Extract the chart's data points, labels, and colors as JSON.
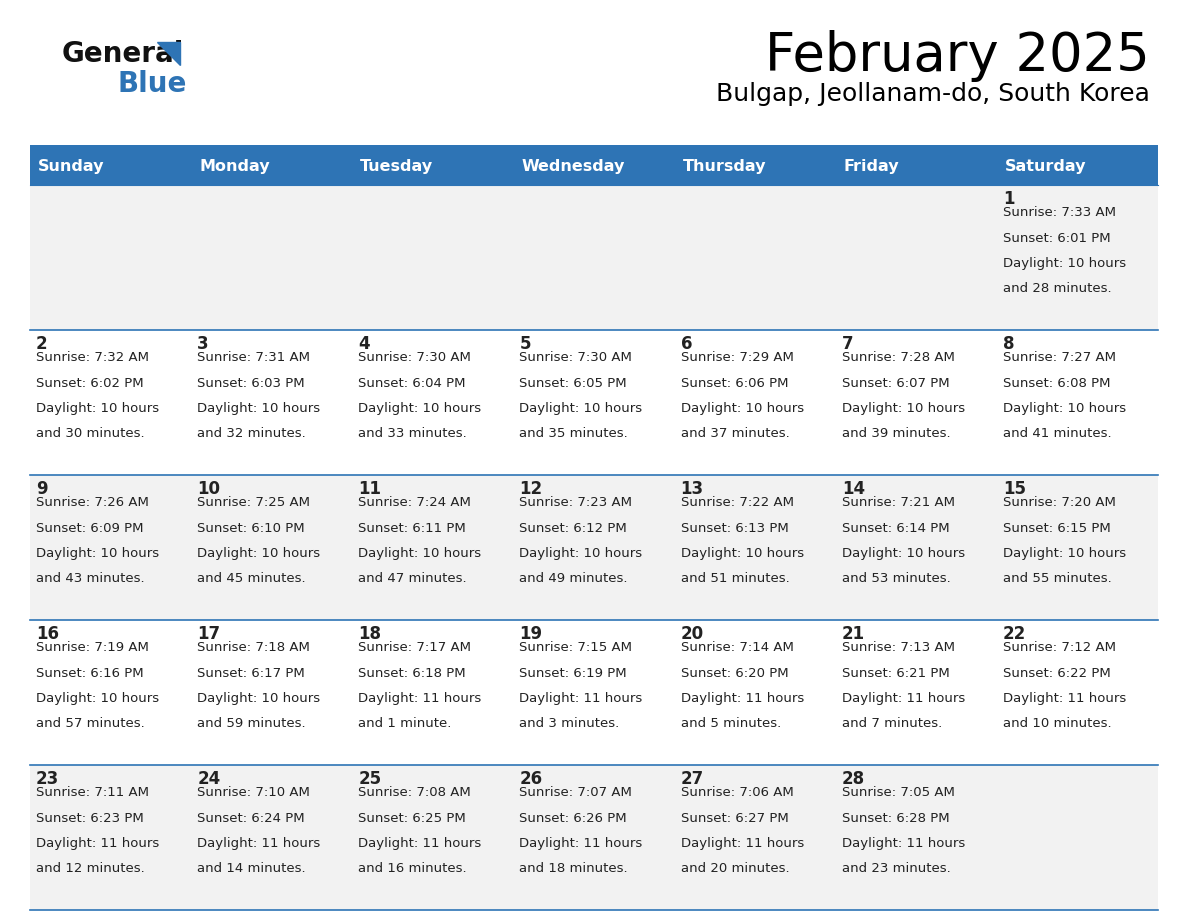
{
  "title": "February 2025",
  "subtitle": "Bulgap, Jeollanam-do, South Korea",
  "days_of_week": [
    "Sunday",
    "Monday",
    "Tuesday",
    "Wednesday",
    "Thursday",
    "Friday",
    "Saturday"
  ],
  "header_bg": "#2E74B5",
  "header_text": "#FFFFFF",
  "cell_bg_odd": "#F2F2F2",
  "cell_bg_even": "#FFFFFF",
  "divider_color": "#2E74B5",
  "text_color": "#222222",
  "day_num_color": "#222222",
  "logo_general_color": "#111111",
  "logo_blue_color": "#2E74B5",
  "calendar_data": [
    {
      "day": 1,
      "col": 6,
      "row": 0,
      "sunrise": "7:33 AM",
      "sunset": "6:01 PM",
      "daylight_hrs": "10 hours",
      "daylight_min": "and 28 minutes."
    },
    {
      "day": 2,
      "col": 0,
      "row": 1,
      "sunrise": "7:32 AM",
      "sunset": "6:02 PM",
      "daylight_hrs": "10 hours",
      "daylight_min": "and 30 minutes."
    },
    {
      "day": 3,
      "col": 1,
      "row": 1,
      "sunrise": "7:31 AM",
      "sunset": "6:03 PM",
      "daylight_hrs": "10 hours",
      "daylight_min": "and 32 minutes."
    },
    {
      "day": 4,
      "col": 2,
      "row": 1,
      "sunrise": "7:30 AM",
      "sunset": "6:04 PM",
      "daylight_hrs": "10 hours",
      "daylight_min": "and 33 minutes."
    },
    {
      "day": 5,
      "col": 3,
      "row": 1,
      "sunrise": "7:30 AM",
      "sunset": "6:05 PM",
      "daylight_hrs": "10 hours",
      "daylight_min": "and 35 minutes."
    },
    {
      "day": 6,
      "col": 4,
      "row": 1,
      "sunrise": "7:29 AM",
      "sunset": "6:06 PM",
      "daylight_hrs": "10 hours",
      "daylight_min": "and 37 minutes."
    },
    {
      "day": 7,
      "col": 5,
      "row": 1,
      "sunrise": "7:28 AM",
      "sunset": "6:07 PM",
      "daylight_hrs": "10 hours",
      "daylight_min": "and 39 minutes."
    },
    {
      "day": 8,
      "col": 6,
      "row": 1,
      "sunrise": "7:27 AM",
      "sunset": "6:08 PM",
      "daylight_hrs": "10 hours",
      "daylight_min": "and 41 minutes."
    },
    {
      "day": 9,
      "col": 0,
      "row": 2,
      "sunrise": "7:26 AM",
      "sunset": "6:09 PM",
      "daylight_hrs": "10 hours",
      "daylight_min": "and 43 minutes."
    },
    {
      "day": 10,
      "col": 1,
      "row": 2,
      "sunrise": "7:25 AM",
      "sunset": "6:10 PM",
      "daylight_hrs": "10 hours",
      "daylight_min": "and 45 minutes."
    },
    {
      "day": 11,
      "col": 2,
      "row": 2,
      "sunrise": "7:24 AM",
      "sunset": "6:11 PM",
      "daylight_hrs": "10 hours",
      "daylight_min": "and 47 minutes."
    },
    {
      "day": 12,
      "col": 3,
      "row": 2,
      "sunrise": "7:23 AM",
      "sunset": "6:12 PM",
      "daylight_hrs": "10 hours",
      "daylight_min": "and 49 minutes."
    },
    {
      "day": 13,
      "col": 4,
      "row": 2,
      "sunrise": "7:22 AM",
      "sunset": "6:13 PM",
      "daylight_hrs": "10 hours",
      "daylight_min": "and 51 minutes."
    },
    {
      "day": 14,
      "col": 5,
      "row": 2,
      "sunrise": "7:21 AM",
      "sunset": "6:14 PM",
      "daylight_hrs": "10 hours",
      "daylight_min": "and 53 minutes."
    },
    {
      "day": 15,
      "col": 6,
      "row": 2,
      "sunrise": "7:20 AM",
      "sunset": "6:15 PM",
      "daylight_hrs": "10 hours",
      "daylight_min": "and 55 minutes."
    },
    {
      "day": 16,
      "col": 0,
      "row": 3,
      "sunrise": "7:19 AM",
      "sunset": "6:16 PM",
      "daylight_hrs": "10 hours",
      "daylight_min": "and 57 minutes."
    },
    {
      "day": 17,
      "col": 1,
      "row": 3,
      "sunrise": "7:18 AM",
      "sunset": "6:17 PM",
      "daylight_hrs": "10 hours",
      "daylight_min": "and 59 minutes."
    },
    {
      "day": 18,
      "col": 2,
      "row": 3,
      "sunrise": "7:17 AM",
      "sunset": "6:18 PM",
      "daylight_hrs": "11 hours",
      "daylight_min": "and 1 minute."
    },
    {
      "day": 19,
      "col": 3,
      "row": 3,
      "sunrise": "7:15 AM",
      "sunset": "6:19 PM",
      "daylight_hrs": "11 hours",
      "daylight_min": "and 3 minutes."
    },
    {
      "day": 20,
      "col": 4,
      "row": 3,
      "sunrise": "7:14 AM",
      "sunset": "6:20 PM",
      "daylight_hrs": "11 hours",
      "daylight_min": "and 5 minutes."
    },
    {
      "day": 21,
      "col": 5,
      "row": 3,
      "sunrise": "7:13 AM",
      "sunset": "6:21 PM",
      "daylight_hrs": "11 hours",
      "daylight_min": "and 7 minutes."
    },
    {
      "day": 22,
      "col": 6,
      "row": 3,
      "sunrise": "7:12 AM",
      "sunset": "6:22 PM",
      "daylight_hrs": "11 hours",
      "daylight_min": "and 10 minutes."
    },
    {
      "day": 23,
      "col": 0,
      "row": 4,
      "sunrise": "7:11 AM",
      "sunset": "6:23 PM",
      "daylight_hrs": "11 hours",
      "daylight_min": "and 12 minutes."
    },
    {
      "day": 24,
      "col": 1,
      "row": 4,
      "sunrise": "7:10 AM",
      "sunset": "6:24 PM",
      "daylight_hrs": "11 hours",
      "daylight_min": "and 14 minutes."
    },
    {
      "day": 25,
      "col": 2,
      "row": 4,
      "sunrise": "7:08 AM",
      "sunset": "6:25 PM",
      "daylight_hrs": "11 hours",
      "daylight_min": "and 16 minutes."
    },
    {
      "day": 26,
      "col": 3,
      "row": 4,
      "sunrise": "7:07 AM",
      "sunset": "6:26 PM",
      "daylight_hrs": "11 hours",
      "daylight_min": "and 18 minutes."
    },
    {
      "day": 27,
      "col": 4,
      "row": 4,
      "sunrise": "7:06 AM",
      "sunset": "6:27 PM",
      "daylight_hrs": "11 hours",
      "daylight_min": "and 20 minutes."
    },
    {
      "day": 28,
      "col": 5,
      "row": 4,
      "sunrise": "7:05 AM",
      "sunset": "6:28 PM",
      "daylight_hrs": "11 hours",
      "daylight_min": "and 23 minutes."
    }
  ]
}
